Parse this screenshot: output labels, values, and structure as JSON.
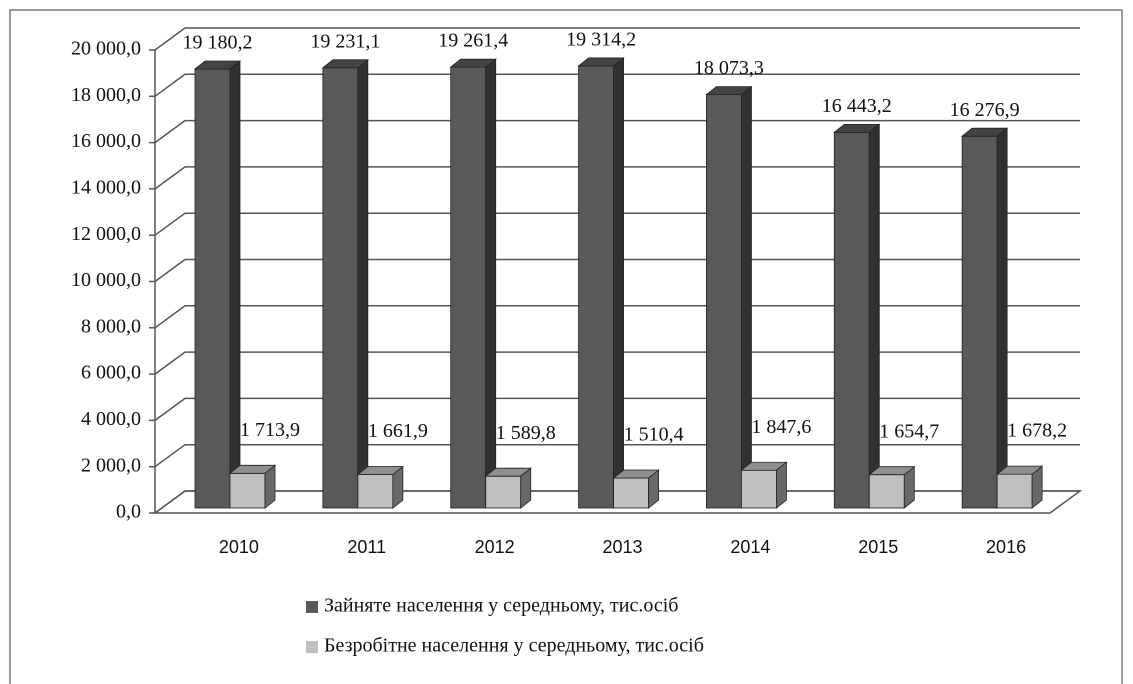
{
  "chart_data": {
    "type": "bar",
    "categories": [
      "2010",
      "2011",
      "2012",
      "2013",
      "2014",
      "2015",
      "2016"
    ],
    "series": [
      {
        "name": "Зайняте населення у середньому, тис.осіб",
        "color": "#595959",
        "values": [
          19180.2,
          19231.1,
          19261.4,
          19314.2,
          18073.3,
          16443.2,
          16276.9
        ],
        "value_labels": [
          "19 180,2",
          "19 231,1",
          "19 261,4",
          "19 314,2",
          "18 073,3",
          "16 443,2",
          "16 276,9"
        ]
      },
      {
        "name": "Безробітне населення у середньому, тис.осіб",
        "color": "#bfbfbf",
        "values": [
          1713.9,
          1661.9,
          1589.8,
          1510.4,
          1847.6,
          1654.7,
          1678.2
        ],
        "value_labels": [
          "1 713,9",
          "1 661,9",
          "1 589,8",
          "1 510,4",
          "1 847,6",
          "1 654,7",
          "1 678,2"
        ]
      }
    ],
    "ylim": [
      0,
      20000
    ],
    "yticks": [
      {
        "value": 0,
        "label": "0,0"
      },
      {
        "value": 2000,
        "label": "2 000,0"
      },
      {
        "value": 4000,
        "label": "4 000,0"
      },
      {
        "value": 6000,
        "label": "6 000,0"
      },
      {
        "value": 8000,
        "label": "8 000,0"
      },
      {
        "value": 10000,
        "label": "10 000,0"
      },
      {
        "value": 12000,
        "label": "12 000,0"
      },
      {
        "value": 14000,
        "label": "14 000,0"
      },
      {
        "value": 16000,
        "label": "16 000,0"
      },
      {
        "value": 18000,
        "label": "18 000,0"
      },
      {
        "value": 20000,
        "label": "20 000,0"
      }
    ],
    "grid": true,
    "legend": "bottom"
  }
}
